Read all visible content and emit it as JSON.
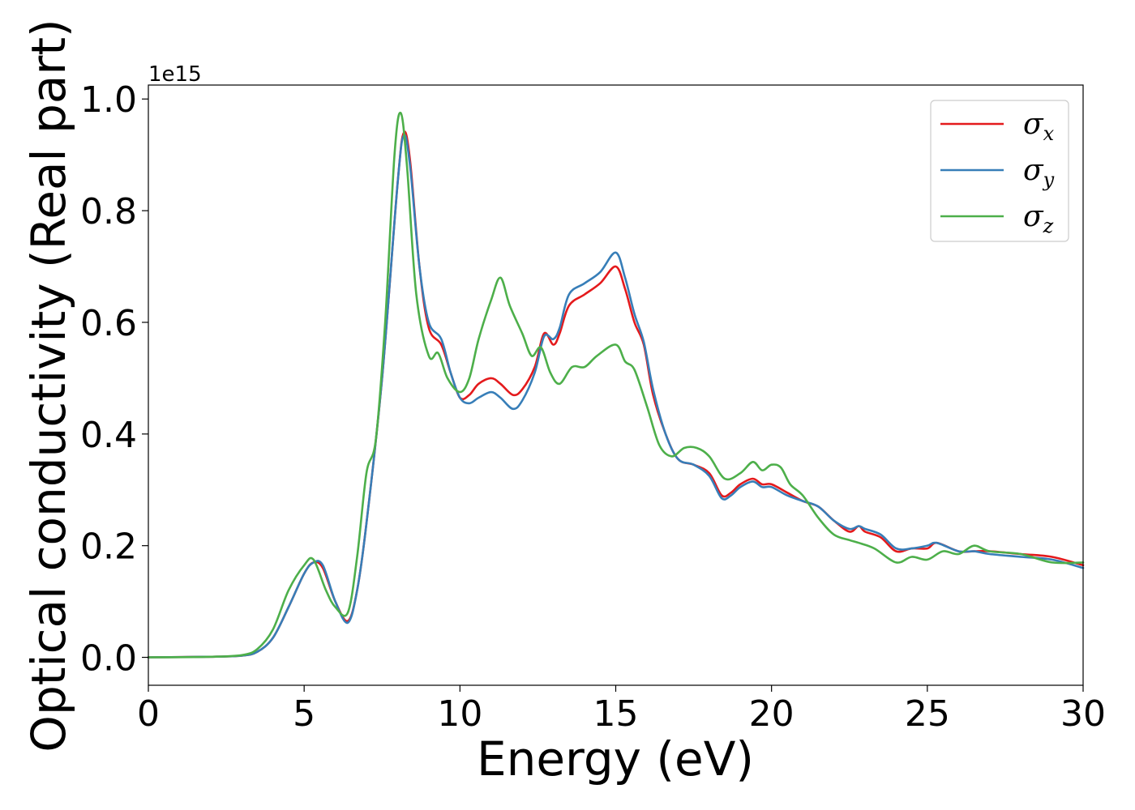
{
  "chart_data": {
    "type": "line",
    "xlabel": "Energy (eV)",
    "ylabel": "Optical conductivity (Real part)",
    "y_offset_text": "1e15",
    "xlim": [
      0,
      30
    ],
    "ylim": [
      -0.05,
      1.025
    ],
    "x_ticks": [
      0,
      5,
      10,
      15,
      20,
      25,
      30
    ],
    "x_tick_labels": [
      "0",
      "5",
      "10",
      "15",
      "20",
      "25",
      "30"
    ],
    "y_ticks": [
      0.0,
      0.2,
      0.4,
      0.6,
      0.8,
      1.0
    ],
    "y_tick_labels": [
      "0.0",
      "0.2",
      "0.4",
      "0.6",
      "0.8",
      "1.0"
    ],
    "grid": false,
    "legend_position": "top-right",
    "series": [
      {
        "name": "σx",
        "symbol": "σ",
        "subscript": "x",
        "color": "#e41a1c",
        "x": [
          0,
          2,
          3,
          3.5,
          4,
          4.5,
          5,
          5.3,
          5.6,
          6,
          6.4,
          6.7,
          7,
          7.5,
          8,
          8.2,
          8.4,
          8.7,
          9,
          9.4,
          9.7,
          10,
          10.3,
          10.6,
          11,
          11.3,
          11.7,
          12,
          12.4,
          12.7,
          13,
          13.2,
          13.5,
          14,
          14.5,
          15,
          15.3,
          15.6,
          15.9,
          16.2,
          16.6,
          17,
          17.5,
          18,
          18.4,
          18.7,
          19,
          19.4,
          19.7,
          20,
          20.5,
          21,
          21.5,
          22,
          22.5,
          22.8,
          23,
          23.5,
          24,
          24.5,
          25,
          25.3,
          26,
          26.5,
          27,
          28,
          29,
          30
        ],
        "y": [
          0.0,
          0.001,
          0.003,
          0.01,
          0.035,
          0.09,
          0.15,
          0.17,
          0.16,
          0.1,
          0.065,
          0.12,
          0.24,
          0.5,
          0.85,
          0.94,
          0.89,
          0.7,
          0.59,
          0.56,
          0.51,
          0.465,
          0.47,
          0.49,
          0.5,
          0.49,
          0.47,
          0.48,
          0.52,
          0.58,
          0.56,
          0.58,
          0.63,
          0.65,
          0.67,
          0.7,
          0.66,
          0.6,
          0.56,
          0.47,
          0.4,
          0.355,
          0.345,
          0.33,
          0.29,
          0.295,
          0.31,
          0.32,
          0.31,
          0.31,
          0.295,
          0.28,
          0.27,
          0.245,
          0.225,
          0.235,
          0.225,
          0.215,
          0.19,
          0.195,
          0.195,
          0.205,
          0.19,
          0.19,
          0.19,
          0.185,
          0.18,
          0.165
        ]
      },
      {
        "name": "σy",
        "symbol": "σ",
        "subscript": "y",
        "color": "#377eb8",
        "x": [
          0,
          2,
          3,
          3.5,
          4,
          4.5,
          5,
          5.3,
          5.6,
          6,
          6.4,
          6.7,
          7,
          7.5,
          8,
          8.2,
          8.4,
          8.7,
          9,
          9.4,
          9.7,
          10,
          10.3,
          10.6,
          11,
          11.3,
          11.7,
          12,
          12.4,
          12.7,
          13,
          13.2,
          13.5,
          14,
          14.5,
          15,
          15.3,
          15.6,
          15.9,
          16.2,
          16.6,
          17,
          17.5,
          18,
          18.4,
          18.7,
          19,
          19.4,
          19.7,
          20,
          20.5,
          21,
          21.5,
          22,
          22.5,
          22.8,
          23,
          23.5,
          24,
          24.5,
          25,
          25.3,
          26,
          26.5,
          27,
          28,
          29,
          30
        ],
        "y": [
          0.0,
          0.001,
          0.003,
          0.01,
          0.035,
          0.09,
          0.15,
          0.17,
          0.165,
          0.1,
          0.062,
          0.12,
          0.24,
          0.5,
          0.85,
          0.935,
          0.88,
          0.7,
          0.6,
          0.57,
          0.51,
          0.465,
          0.455,
          0.465,
          0.475,
          0.465,
          0.445,
          0.46,
          0.51,
          0.575,
          0.57,
          0.59,
          0.65,
          0.67,
          0.69,
          0.725,
          0.68,
          0.615,
          0.565,
          0.48,
          0.4,
          0.355,
          0.345,
          0.325,
          0.285,
          0.29,
          0.305,
          0.315,
          0.305,
          0.305,
          0.29,
          0.28,
          0.27,
          0.245,
          0.23,
          0.235,
          0.23,
          0.22,
          0.195,
          0.195,
          0.2,
          0.205,
          0.19,
          0.19,
          0.185,
          0.18,
          0.175,
          0.16
        ]
      },
      {
        "name": "σz",
        "symbol": "σ",
        "subscript": "z",
        "color": "#4daf4a",
        "x": [
          0,
          2,
          3,
          3.5,
          4,
          4.5,
          5,
          5.3,
          5.7,
          6,
          6.4,
          6.7,
          7,
          7.3,
          7.6,
          7.9,
          8.1,
          8.3,
          8.6,
          9,
          9.3,
          9.6,
          10,
          10.3,
          10.6,
          11,
          11.3,
          11.6,
          12,
          12.3,
          12.6,
          12.9,
          13.2,
          13.6,
          14,
          14.4,
          15,
          15.3,
          15.6,
          16,
          16.4,
          16.8,
          17.2,
          17.6,
          18,
          18.5,
          19,
          19.4,
          19.7,
          20,
          20.3,
          20.6,
          21,
          21.5,
          22,
          22.5,
          22.8,
          23.3,
          24,
          24.5,
          25,
          25.5,
          26,
          26.5,
          27,
          28,
          29,
          30
        ],
        "y": [
          0.0,
          0.001,
          0.004,
          0.015,
          0.05,
          0.12,
          0.165,
          0.175,
          0.12,
          0.09,
          0.08,
          0.18,
          0.33,
          0.39,
          0.6,
          0.9,
          0.975,
          0.88,
          0.65,
          0.54,
          0.545,
          0.5,
          0.475,
          0.5,
          0.57,
          0.64,
          0.68,
          0.63,
          0.58,
          0.54,
          0.555,
          0.51,
          0.49,
          0.52,
          0.52,
          0.54,
          0.56,
          0.53,
          0.515,
          0.45,
          0.38,
          0.36,
          0.375,
          0.375,
          0.36,
          0.32,
          0.33,
          0.35,
          0.335,
          0.345,
          0.34,
          0.31,
          0.29,
          0.25,
          0.22,
          0.21,
          0.205,
          0.195,
          0.17,
          0.18,
          0.175,
          0.19,
          0.185,
          0.2,
          0.19,
          0.185,
          0.17,
          0.17
        ]
      }
    ]
  }
}
